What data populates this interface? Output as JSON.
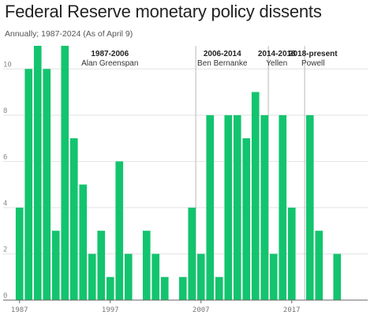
{
  "chart_data": {
    "type": "bar",
    "title": "Federal Reserve monetary policy dissents",
    "subtitle": "Annually; 1987-2024 (As of April 9)",
    "x": [
      1987,
      1988,
      1989,
      1990,
      1991,
      1992,
      1993,
      1994,
      1995,
      1996,
      1997,
      1998,
      1999,
      2000,
      2001,
      2002,
      2003,
      2004,
      2005,
      2006,
      2007,
      2008,
      2009,
      2010,
      2011,
      2012,
      2013,
      2014,
      2015,
      2016,
      2017,
      2018,
      2019,
      2020,
      2021,
      2022,
      2023,
      2024
    ],
    "values": [
      4,
      10,
      11,
      10,
      3,
      11,
      7,
      5,
      2,
      3,
      1,
      6,
      2,
      0,
      3,
      2,
      1,
      0,
      1,
      4,
      2,
      8,
      1,
      8,
      8,
      7,
      9,
      8,
      2,
      8,
      4,
      0,
      8,
      3,
      0,
      2,
      0,
      0
    ],
    "xticks": [
      1987,
      1997,
      2007,
      2017
    ],
    "xtick_labels": [
      "1987",
      "1997",
      "2007",
      "2017"
    ],
    "yticks": [
      0,
      2,
      4,
      6,
      8,
      10
    ],
    "ylim": [
      0,
      11
    ],
    "xlabel": "",
    "ylabel": "",
    "grid": "horizontal",
    "bar_color": "#13c46e",
    "eras": [
      {
        "period": "1987-2006",
        "chair": "Alan Greenspan",
        "start": 1987
      },
      {
        "period": "2006-2014",
        "chair": "Ben Bernanke",
        "start": 2006
      },
      {
        "period": "2014-2018",
        "chair": "Yellen",
        "start": 2014
      },
      {
        "period": "2018-present",
        "chair": "Powell",
        "start": 2018
      }
    ]
  }
}
